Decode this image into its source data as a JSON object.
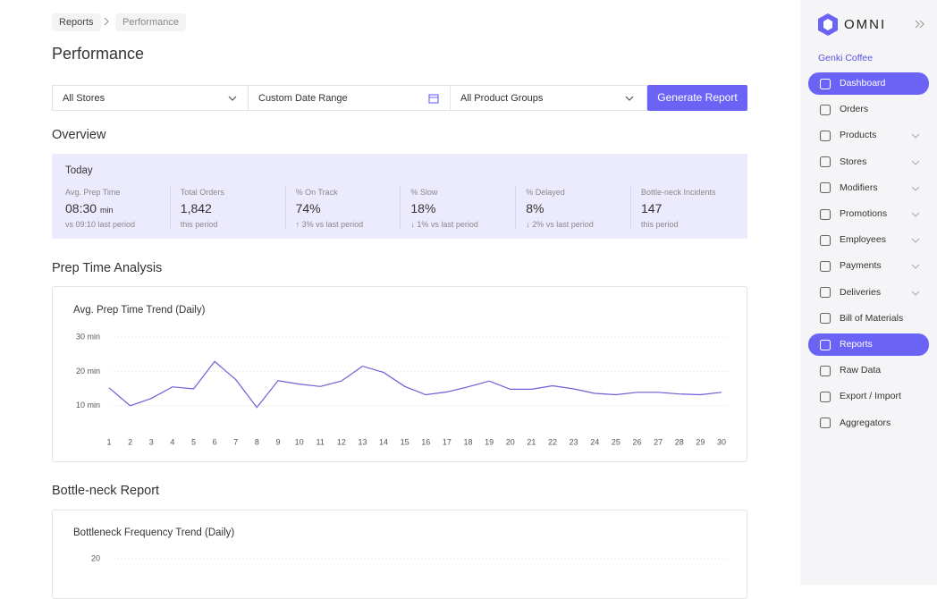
{
  "breadcrumb": [
    "Reports",
    "Performance"
  ],
  "page_title": "Performance",
  "filters": {
    "stores": "All Stores",
    "date_range": "Custom Date Range",
    "product_groups": "All Product Groups",
    "button": "Generate Report"
  },
  "overview": {
    "title": "Overview",
    "period": "Today",
    "metrics": [
      {
        "label": "Avg. Prep Time",
        "value": "08:30",
        "unit": "min",
        "note": "vs 09:10 last period"
      },
      {
        "label": "Total Orders",
        "value": "1,842",
        "note": "this period"
      },
      {
        "label": "% On Track",
        "value": "74%",
        "note": "↑ 3% vs last period"
      },
      {
        "label": "% Slow",
        "value": "18%",
        "note": "↓ 1% vs last period"
      },
      {
        "label": "% Delayed",
        "value": "8%",
        "note": "↓ 2% vs last period"
      },
      {
        "label": "Bottle-neck Incidents",
        "value": "147",
        "note": "this period"
      }
    ]
  },
  "prep_section_title": "Prep Time Analysis",
  "chart_data": {
    "type": "line",
    "title": "Avg. Prep Time Trend (Daily)",
    "categories": [
      "1",
      "2",
      "3",
      "4",
      "5",
      "6",
      "7",
      "8",
      "9",
      "10",
      "11",
      "12",
      "13",
      "14",
      "15",
      "16",
      "17",
      "18",
      "19",
      "20",
      "21",
      "22",
      "23",
      "24",
      "25",
      "26",
      "27",
      "28",
      "29",
      "30"
    ],
    "values": [
      15.2,
      10.0,
      12.1,
      15.5,
      14.9,
      22.9,
      17.6,
      9.5,
      17.3,
      16.3,
      15.6,
      17.2,
      21.5,
      19.7,
      15.6,
      13.2,
      14.0,
      15.5,
      17.2,
      14.8,
      14.8,
      15.8,
      14.9,
      13.6,
      13.2,
      13.9,
      13.9,
      13.4,
      13.2,
      13.9
    ],
    "color": "#6a5fd6",
    "ylim": [
      5,
      30
    ],
    "yticks": [
      {
        "value": 10,
        "label": "10 min"
      },
      {
        "value": 20,
        "label": "20 min"
      },
      {
        "value": 30,
        "label": "30 min"
      }
    ],
    "grid": true
  },
  "bottleneck_section_title": "Bottle-neck Report",
  "bottleneck_chart": {
    "title": "Bottleneck Frequency Trend (Daily)",
    "yticks": [
      20
    ]
  },
  "sidebar": {
    "brand": "OMNI",
    "organization": "Genki Coffee",
    "nav": [
      {
        "label": "Dashboard",
        "active": true,
        "has_submenu": false
      },
      {
        "label": "Orders",
        "active": false,
        "has_submenu": false
      },
      {
        "label": "Products",
        "active": false,
        "has_submenu": true
      },
      {
        "label": "Stores",
        "active": false,
        "has_submenu": true
      },
      {
        "label": "Modifiers",
        "active": false,
        "has_submenu": true
      },
      {
        "label": "Promotions",
        "active": false,
        "has_submenu": true
      },
      {
        "label": "Employees",
        "active": false,
        "has_submenu": true
      },
      {
        "label": "Payments",
        "active": false,
        "has_submenu": true
      },
      {
        "label": "Deliveries",
        "active": false,
        "has_submenu": true
      },
      {
        "label": "Bill of Materials",
        "active": false,
        "has_submenu": false
      },
      {
        "label": "Reports",
        "active": true,
        "has_submenu": false
      },
      {
        "label": "Raw Data",
        "active": false,
        "has_submenu": false
      },
      {
        "label": "Export / Import",
        "active": false,
        "has_submenu": false
      },
      {
        "label": "Aggregators",
        "active": false,
        "has_submenu": false
      }
    ]
  }
}
